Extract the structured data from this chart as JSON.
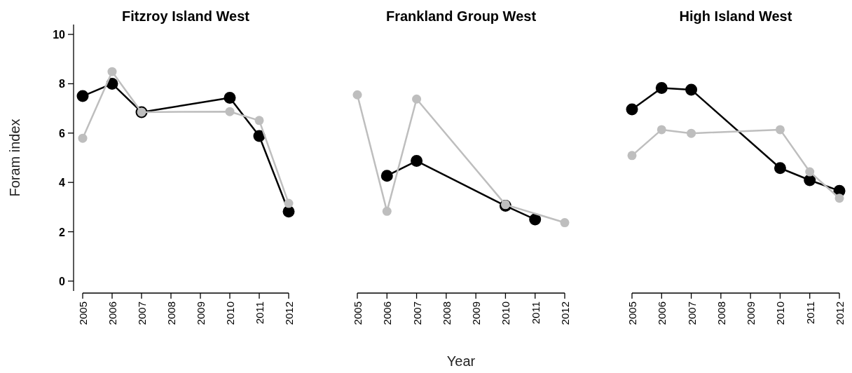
{
  "chart_data": [
    {
      "type": "line",
      "title": "Fitzroy Island West",
      "ylabel": "Foram index",
      "x": [
        2005,
        2006,
        2007,
        2010,
        2011,
        2012
      ],
      "xlim": [
        2005,
        2012
      ],
      "xticks": [
        2005,
        2006,
        2007,
        2008,
        2009,
        2010,
        2011,
        2012
      ],
      "ylim": [
        -0.4,
        10.4
      ],
      "yticks": [
        0,
        2,
        4,
        6,
        8,
        10
      ],
      "marker": "circle",
      "series": [
        {
          "color": "#000000",
          "values": [
            7.5,
            8.0,
            6.85,
            7.43,
            5.88,
            2.82
          ]
        },
        {
          "color": "#bebebe",
          "values": [
            5.79,
            8.49,
            6.85,
            6.87,
            6.51,
            3.15
          ]
        }
      ]
    },
    {
      "type": "line",
      "title": "Frankland Group West",
      "xlabel": "Year",
      "x": [
        2005,
        2006,
        2007,
        2010,
        2011,
        2012
      ],
      "xlim": [
        2005,
        2012
      ],
      "xticks": [
        2005,
        2006,
        2007,
        2008,
        2009,
        2010,
        2011,
        2012
      ],
      "ylim": [
        0,
        10
      ],
      "yticks": [
        0,
        2,
        4,
        6,
        8,
        10
      ],
      "tick_labels": "x",
      "marker": "circle",
      "series": [
        {
          "color": "#000000",
          "values": [
            null,
            4.27,
            4.87,
            3.05,
            2.5,
            null
          ]
        },
        {
          "color": "#bebebe",
          "values": [
            7.55,
            2.83,
            7.38,
            3.1,
            null,
            2.37
          ]
        }
      ]
    },
    {
      "type": "line",
      "title": "High Island West",
      "x": [
        2005,
        2006,
        2007,
        2010,
        2011,
        2012
      ],
      "xlim": [
        2005,
        2012
      ],
      "xticks": [
        2005,
        2006,
        2007,
        2008,
        2009,
        2010,
        2011,
        2012
      ],
      "ylim": [
        0,
        10
      ],
      "yticks": [
        0,
        2,
        4,
        6,
        8,
        10
      ],
      "tick_labels": "x",
      "marker": "circle",
      "series": [
        {
          "color": "#000000",
          "values": [
            6.96,
            7.83,
            7.76,
            4.58,
            4.09,
            3.66
          ]
        },
        {
          "color": "#bebebe",
          "values": [
            5.09,
            6.14,
            5.99,
            6.14,
            4.43,
            3.36
          ]
        }
      ]
    }
  ]
}
